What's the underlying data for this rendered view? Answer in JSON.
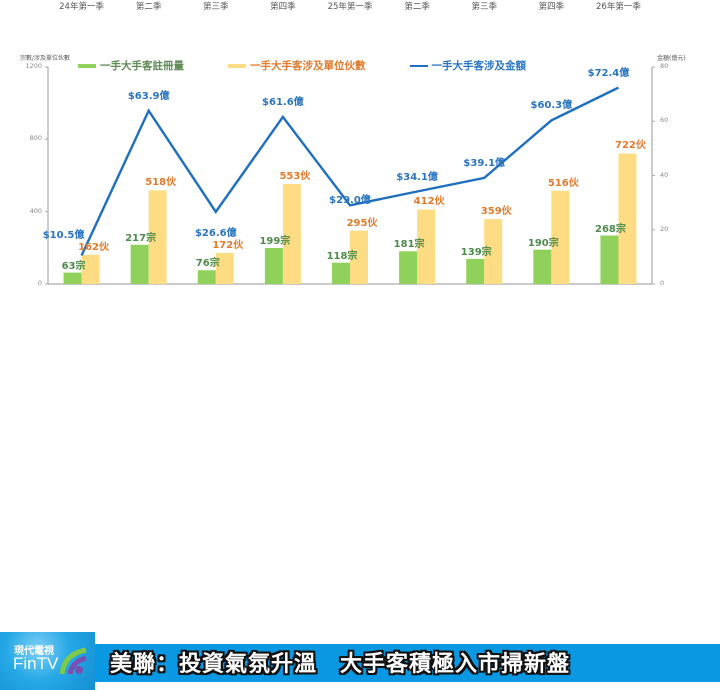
{
  "chart_data": {
    "type": "bar+line",
    "title": "",
    "categories": [
      "24年第一季",
      "第二季",
      "第三季",
      "第四季",
      "25年第一季",
      "第二季",
      "第三季",
      "第四季",
      "26年第一季"
    ],
    "series": [
      {
        "name": "一手大手客註冊量",
        "type": "bar",
        "axis": "left",
        "color": "#8fd15a",
        "values": [
          63,
          217,
          76,
          199,
          118,
          181,
          139,
          190,
          268
        ],
        "labels": [
          "63宗",
          "217宗",
          "76宗",
          "199宗",
          "118宗",
          "181宗",
          "139宗",
          "190宗",
          "268宗"
        ]
      },
      {
        "name": "一手大手客涉及單位伙數",
        "type": "bar",
        "axis": "left",
        "color": "#fddc84",
        "values": [
          162,
          518,
          172,
          553,
          295,
          412,
          359,
          516,
          722
        ],
        "labels": [
          "162伙",
          "518伙",
          "172伙",
          "553伙",
          "295伙",
          "412伙",
          "359伙",
          "516伙",
          "722伙"
        ]
      },
      {
        "name": "一手大手客涉及金額",
        "type": "line",
        "axis": "right",
        "color": "#1f6fbf",
        "values": [
          10.5,
          63.9,
          26.6,
          61.6,
          29.0,
          34.1,
          39.1,
          60.3,
          72.4
        ],
        "labels": [
          "$10.5億",
          "$63.9億",
          "$26.6億",
          "$61.6億",
          "$29.0億",
          "$34.1億",
          "$39.1億",
          "$60.3億",
          "$72.4億"
        ]
      }
    ],
    "ylabel": "宗數/涉及單位伙數",
    "ylabel_right": "金額(億元)",
    "ylim": [
      0,
      1200
    ],
    "ylim_right": [
      0,
      80
    ],
    "yticks": [
      0,
      400,
      800,
      1200
    ],
    "yticks_right": [
      0,
      20,
      40,
      60,
      80
    ],
    "legend_position": "top",
    "grid": false
  },
  "banner": {
    "logo_cn": "現代電視",
    "logo_en": "FinTV",
    "headline": "美聯：投資氣氛升溫　大手客積極入市掃新盤"
  }
}
